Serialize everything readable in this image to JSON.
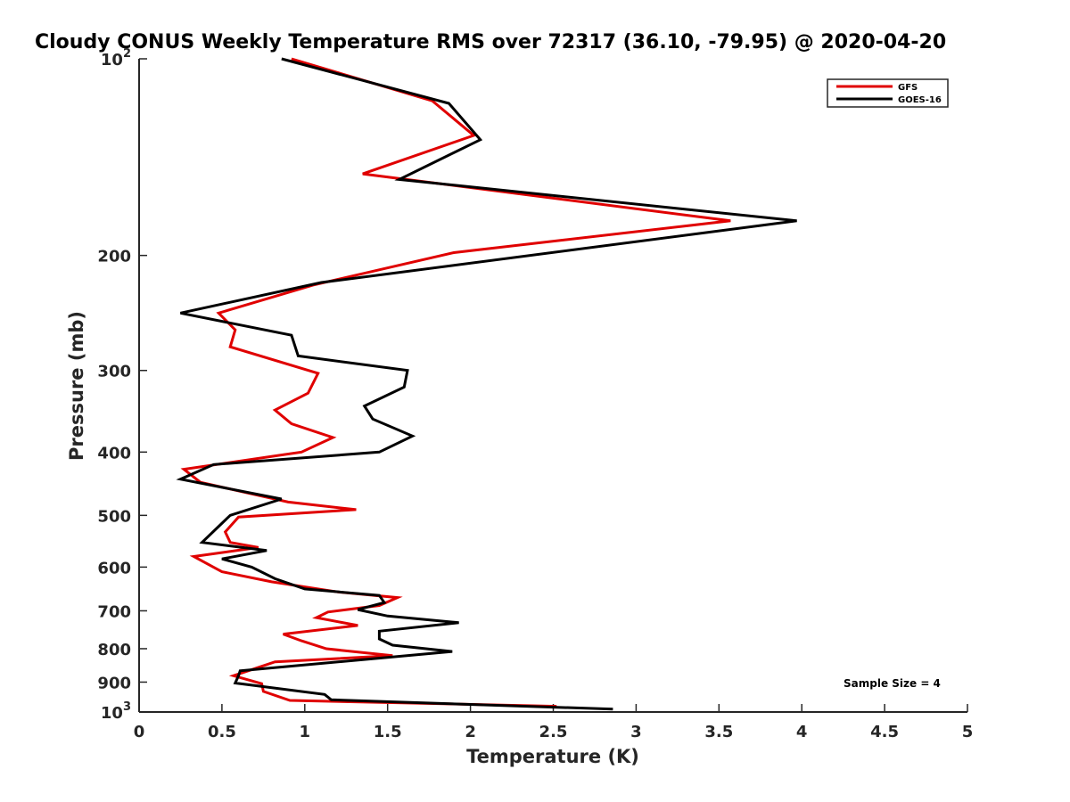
{
  "chart_data": {
    "type": "line",
    "title": "Cloudy CONUS Weekly Temperature RMS over 72317 (36.10, -79.95) @ 2020-04-20",
    "xlabel": "Temperature (K)",
    "ylabel": "Pressure (mb)",
    "xlim": [
      0,
      5
    ],
    "ylim": [
      100,
      1000
    ],
    "y_scale": "log",
    "y_reversed": true,
    "x_ticks": [
      "0",
      "0.5",
      "1",
      "1.5",
      "2",
      "2.5",
      "3",
      "3.5",
      "4",
      "4.5",
      "5"
    ],
    "y_ticks": [
      {
        "value": 100,
        "base": "10",
        "exp": "2"
      },
      {
        "value": 200,
        "label": "200"
      },
      {
        "value": 300,
        "label": "300"
      },
      {
        "value": 400,
        "label": "400"
      },
      {
        "value": 500,
        "label": "500"
      },
      {
        "value": 600,
        "label": "600"
      },
      {
        "value": 700,
        "label": "700"
      },
      {
        "value": 800,
        "label": "800"
      },
      {
        "value": 900,
        "label": "900"
      },
      {
        "value": 1000,
        "base": "10",
        "exp": "3"
      }
    ],
    "grid": false,
    "legend_position": "top-right",
    "annotation": "Sample Size = 4",
    "series": [
      {
        "name": "GFS",
        "color": "#e00000",
        "points": [
          [
            0.92,
            100
          ],
          [
            1.77,
            116
          ],
          [
            2.02,
            131
          ],
          [
            1.35,
            150
          ],
          [
            3.57,
            177
          ],
          [
            1.9,
            198
          ],
          [
            1.05,
            222
          ],
          [
            0.48,
            245
          ],
          [
            0.58,
            260
          ],
          [
            0.55,
            276
          ],
          [
            1.08,
            303
          ],
          [
            1.02,
            325
          ],
          [
            0.82,
            345
          ],
          [
            0.92,
            362
          ],
          [
            1.17,
            380
          ],
          [
            0.98,
            400
          ],
          [
            0.27,
            425
          ],
          [
            0.37,
            445
          ],
          [
            0.9,
            477
          ],
          [
            1.31,
            490
          ],
          [
            0.6,
            503
          ],
          [
            0.52,
            530
          ],
          [
            0.55,
            550
          ],
          [
            0.72,
            560
          ],
          [
            0.33,
            578
          ],
          [
            0.5,
            610
          ],
          [
            0.8,
            632
          ],
          [
            1.2,
            655
          ],
          [
            1.56,
            668
          ],
          [
            1.45,
            687
          ],
          [
            1.14,
            703
          ],
          [
            1.07,
            717
          ],
          [
            1.32,
            737
          ],
          [
            0.87,
            760
          ],
          [
            0.98,
            778
          ],
          [
            1.13,
            800
          ],
          [
            1.53,
            820
          ],
          [
            0.82,
            838
          ],
          [
            0.57,
            880
          ],
          [
            0.74,
            905
          ],
          [
            0.75,
            930
          ],
          [
            0.91,
            960
          ],
          [
            2.52,
            980
          ]
        ]
      },
      {
        "name": "GOES-16",
        "color": "#000000",
        "points": [
          [
            0.86,
            100
          ],
          [
            1.87,
            117
          ],
          [
            2.06,
            133
          ],
          [
            1.57,
            153
          ],
          [
            3.97,
            177
          ],
          [
            1.1,
            220
          ],
          [
            0.25,
            245
          ],
          [
            0.92,
            265
          ],
          [
            0.96,
            285
          ],
          [
            1.62,
            300
          ],
          [
            1.6,
            318
          ],
          [
            1.36,
            340
          ],
          [
            1.41,
            356
          ],
          [
            1.65,
            378
          ],
          [
            1.45,
            400
          ],
          [
            0.45,
            418
          ],
          [
            0.25,
            440
          ],
          [
            0.86,
            472
          ],
          [
            0.55,
            500
          ],
          [
            0.38,
            550
          ],
          [
            0.77,
            566
          ],
          [
            0.5,
            583
          ],
          [
            0.68,
            600
          ],
          [
            0.82,
            625
          ],
          [
            1.0,
            648
          ],
          [
            1.45,
            663
          ],
          [
            1.48,
            680
          ],
          [
            1.32,
            697
          ],
          [
            1.5,
            713
          ],
          [
            1.93,
            730
          ],
          [
            1.45,
            752
          ],
          [
            1.45,
            773
          ],
          [
            1.53,
            790
          ],
          [
            1.89,
            808
          ],
          [
            0.61,
            865
          ],
          [
            0.6,
            880
          ],
          [
            0.58,
            903
          ],
          [
            1.12,
            940
          ],
          [
            1.16,
            958
          ],
          [
            2.86,
            990
          ]
        ]
      }
    ]
  }
}
